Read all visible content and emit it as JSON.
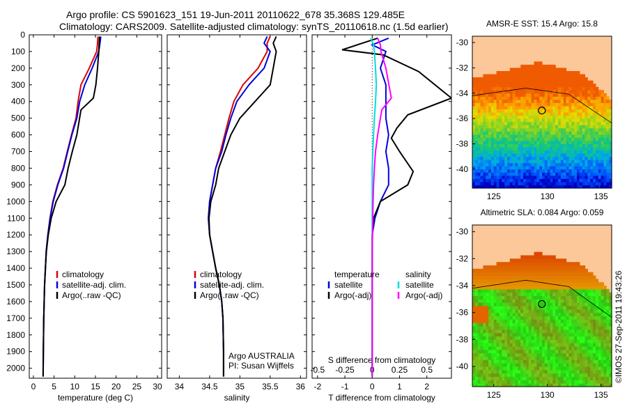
{
  "header": {
    "line1": "Argo profile: CS 5901623_151 19-Jun-2011 20110622_678 35.368S 129.485E",
    "line2": "Climatology: CARS2009. Satellite-adjusted climatology: synTS_20110618.nc (1.5d earlier)"
  },
  "colors": {
    "climatology": "#dd0000",
    "satellite": "#0000dd",
    "argo": "#000000",
    "salinity_satellite": "#00dddd",
    "salinity_argo": "#ff00ff",
    "land": "#fcc89a",
    "coast": "#000000"
  },
  "depth_axis": {
    "ticks": [
      "0",
      "100",
      "200",
      "300",
      "400",
      "500",
      "600",
      "700",
      "800",
      "900",
      "1000",
      "1100",
      "1200",
      "1300",
      "1400",
      "1500",
      "1600",
      "1700",
      "1800",
      "1900",
      "2000"
    ],
    "range": [
      0,
      2060
    ],
    "reversed": true
  },
  "chart_data": [
    {
      "type": "line",
      "panel": "temperature",
      "xlabel": "temperature (deg C)",
      "xticks": [
        "0",
        "5",
        "10",
        "15",
        "20",
        "25",
        "30"
      ],
      "xlim": [
        -1,
        31
      ],
      "ylim": [
        0,
        2060
      ],
      "legend": [
        "climatology",
        "satellite-adj. clim.",
        "Argo(..raw -QC)"
      ],
      "series": [
        {
          "name": "climatology",
          "color": "#dd0000",
          "x": [
            15.6,
            15.5,
            15.3,
            13.5,
            11.5,
            10.8,
            10.3,
            9.2,
            8.2,
            7.2,
            5.8,
            4.7,
            4.0,
            3.5,
            3.1,
            2.9,
            2.7,
            2.6,
            2.5,
            2.4,
            2.35
          ],
          "y": [
            10,
            50,
            100,
            200,
            300,
            400,
            500,
            600,
            700,
            800,
            900,
            1000,
            1100,
            1200,
            1300,
            1400,
            1500,
            1600,
            1700,
            1900,
            2050
          ]
        },
        {
          "name": "satellite-adj. clim.",
          "color": "#0000dd",
          "x": [
            16.3,
            16.1,
            15.8,
            14.2,
            12.4,
            11.2,
            10.5,
            9.3,
            8.3,
            7.3,
            5.9,
            4.8,
            4.05,
            3.5,
            3.1,
            2.9,
            2.7,
            2.6,
            2.5,
            2.4,
            2.35
          ],
          "y": [
            10,
            50,
            100,
            200,
            300,
            400,
            500,
            600,
            700,
            800,
            900,
            1000,
            1100,
            1200,
            1300,
            1400,
            1500,
            1600,
            1700,
            1900,
            2050
          ]
        },
        {
          "name": "Argo(..raw -QC)",
          "color": "#000000",
          "x": [
            16.0,
            15.9,
            15.8,
            15.5,
            15.1,
            14.5,
            11.5,
            10.5,
            9.4,
            8.4,
            7.6,
            5.5,
            4.3,
            3.6,
            3.15,
            2.9,
            2.7,
            2.6,
            2.5,
            2.4,
            2.35
          ],
          "y": [
            10,
            50,
            100,
            200,
            300,
            380,
            450,
            600,
            700,
            800,
            900,
            1000,
            1100,
            1200,
            1300,
            1400,
            1500,
            1600,
            1700,
            1900,
            2050
          ]
        }
      ]
    },
    {
      "type": "line",
      "panel": "salinity",
      "xlabel": "salinity",
      "xticks": [
        "34",
        "34.5",
        "35",
        "35.5",
        "36"
      ],
      "xlim": [
        33.8,
        36.1
      ],
      "ylim": [
        0,
        2060
      ],
      "legend": [
        "climatology",
        "satellite-adj. clim.",
        "Argo(..raw -QC)"
      ],
      "annotation": [
        "Argo AUSTRALIA",
        "PI: Susan Wijffels"
      ],
      "series": [
        {
          "name": "climatology",
          "color": "#dd0000",
          "x": [
            35.5,
            35.45,
            35.45,
            35.3,
            35.05,
            34.9,
            34.82,
            34.75,
            34.68,
            34.6,
            34.55,
            34.5,
            34.48,
            34.5,
            34.55,
            34.6,
            34.66,
            34.7,
            34.72,
            34.73,
            34.73
          ],
          "y": [
            10,
            50,
            100,
            200,
            300,
            400,
            500,
            600,
            700,
            800,
            900,
            1000,
            1100,
            1200,
            1300,
            1400,
            1500,
            1600,
            1700,
            1900,
            2050
          ]
        },
        {
          "name": "satellite-adj. clim.",
          "color": "#0000dd",
          "x": [
            35.45,
            35.4,
            35.5,
            35.4,
            35.15,
            34.95,
            34.85,
            34.77,
            34.7,
            34.6,
            34.55,
            34.5,
            34.48,
            34.5,
            34.55,
            34.6,
            34.66,
            34.7,
            34.72,
            34.73,
            34.73
          ],
          "y": [
            10,
            50,
            100,
            200,
            300,
            400,
            500,
            600,
            700,
            800,
            900,
            1000,
            1100,
            1200,
            1300,
            1400,
            1500,
            1600,
            1700,
            1900,
            2050
          ]
        },
        {
          "name": "Argo(..raw -QC)",
          "color": "#000000",
          "x": [
            35.6,
            35.55,
            35.6,
            35.55,
            35.5,
            35.25,
            35.0,
            34.85,
            34.75,
            34.65,
            34.6,
            34.52,
            34.49,
            34.5,
            34.55,
            34.6,
            34.66,
            34.7,
            34.72,
            34.73,
            34.73
          ],
          "y": [
            10,
            50,
            100,
            200,
            300,
            400,
            500,
            600,
            700,
            800,
            900,
            1000,
            1100,
            1200,
            1300,
            1400,
            1500,
            1600,
            1700,
            1900,
            2050
          ]
        }
      ]
    },
    {
      "type": "line",
      "panel": "difference",
      "xlabel": "T difference from climatology",
      "xlabel_top": "S difference from climatology",
      "xticks": [
        "-2",
        "-1",
        "0",
        "1",
        "2"
      ],
      "xticks_top": [
        "-0.5",
        "-0.25",
        "0",
        "0.25",
        "0.5"
      ],
      "xlim": [
        -2.2,
        2.9
      ],
      "ylim": [
        0,
        2060
      ],
      "legend_temperature": [
        "temperature",
        "satellite",
        "Argo(-adj)"
      ],
      "legend_salinity": [
        "salinity",
        "satellite",
        "Argo(-adj)"
      ],
      "series": [
        {
          "name": "temperature satellite",
          "color": "#0000dd",
          "x": [
            0.6,
            0.0,
            0.5,
            0.3,
            0.5,
            0.5,
            0.5,
            0.6,
            0.5,
            0.6,
            0.6,
            0.3,
            0.1,
            0.0,
            0.0,
            0.0,
            0.0,
            0.0,
            0.0,
            0.0,
            0.0
          ],
          "y": [
            20,
            60,
            100,
            200,
            300,
            400,
            500,
            600,
            700,
            800,
            900,
            1000,
            1100,
            1200,
            1300,
            1400,
            1500,
            1600,
            1700,
            1900,
            2050
          ]
        },
        {
          "name": "temperature Argo(-adj)",
          "color": "#000000",
          "x": [
            0.2,
            -1.1,
            0.4,
            1.7,
            2.9,
            1.3,
            0.9,
            0.7,
            1.0,
            1.5,
            1.3,
            0.3,
            0.05,
            0.0,
            0.0,
            0.0,
            0.0,
            0.0,
            0.0,
            0.0,
            0.0
          ],
          "y": [
            20,
            90,
            120,
            220,
            380,
            480,
            560,
            620,
            700,
            820,
            900,
            1000,
            1100,
            1200,
            1300,
            1400,
            1500,
            1600,
            1700,
            1900,
            2050
          ]
        },
        {
          "name": "salinity satellite",
          "color": "#00dddd",
          "x": [
            -0.05,
            0.05,
            0.08,
            0.12,
            0.15,
            0.12,
            0.08,
            0.05,
            0.02,
            0.0,
            0.0,
            0.0,
            0.0,
            0.0,
            0.0,
            0.0,
            0.0,
            0.0,
            0.0,
            0.0,
            0.0
          ],
          "y": [
            20,
            60,
            100,
            200,
            300,
            400,
            500,
            600,
            700,
            800,
            900,
            1000,
            1100,
            1200,
            1300,
            1400,
            1500,
            1600,
            1700,
            1900,
            2050
          ]
        },
        {
          "name": "salinity Argo(-adj)",
          "color": "#ff00ff",
          "x": [
            0.2,
            0.3,
            0.32,
            0.5,
            0.7,
            0.35,
            0.2,
            0.12,
            0.08,
            0.05,
            0.03,
            0.02,
            0.01,
            0.0,
            0.0,
            0.0,
            0.0,
            0.0,
            0.0,
            0.0,
            0.0
          ],
          "y": [
            20,
            60,
            100,
            200,
            380,
            450,
            600,
            700,
            800,
            900,
            1000,
            1100,
            1200,
            1300,
            1400,
            1500,
            1600,
            1700,
            1800,
            1900,
            2050
          ]
        }
      ]
    }
  ],
  "maps": [
    {
      "title": "AMSR-E SST: 15.4  Argo: 15.8",
      "xticks": [
        "125",
        "130",
        "135"
      ],
      "yticks": [
        "-30",
        "-32",
        "-34",
        "-36",
        "-38",
        "-40"
      ],
      "lon_range": [
        123,
        136
      ],
      "lat_range": [
        -41.5,
        -29.5
      ],
      "marker": {
        "lon": 129.485,
        "lat": -35.368
      }
    },
    {
      "title": "Altimetric SLA: 0.084  Argo: 0.059",
      "xticks": [
        "125",
        "130",
        "135"
      ],
      "yticks": [
        "-30",
        "-32",
        "-34",
        "-36",
        "-38",
        "-40"
      ],
      "lon_range": [
        123,
        136
      ],
      "lat_range": [
        -41.5,
        -29.5
      ],
      "marker": {
        "lon": 129.485,
        "lat": -35.368
      }
    }
  ],
  "credit": "©IMOS 27-Sep-2011 19:43:26"
}
